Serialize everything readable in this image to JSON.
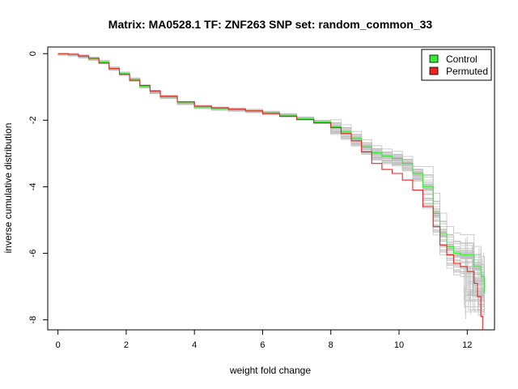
{
  "chart_data": {
    "type": "line",
    "title": "Matrix: MA0528.1 TF: ZNF263 SNP set: random_common_33",
    "xlabel": "weight fold change",
    "ylabel": "inverse cumulative distribution",
    "xlim": [
      -0.3,
      12.8
    ],
    "ylim": [
      -8.3,
      0.2
    ],
    "x_ticks": [
      0,
      2,
      4,
      6,
      8,
      10,
      12
    ],
    "y_ticks": [
      0,
      -2,
      -4,
      -6,
      -8
    ],
    "legend": {
      "position": "top-right",
      "entries": [
        "Control",
        "Permuted"
      ]
    },
    "grid": false,
    "colors": {
      "Control": "#33ee33",
      "Permuted": "#ee2222",
      "background": "#c0c0c0"
    },
    "series": [
      {
        "name": "Control",
        "x": [
          0,
          0.3,
          0.6,
          0.9,
          1.2,
          1.5,
          1.8,
          2.1,
          2.4,
          2.7,
          3.0,
          3.5,
          4.0,
          4.5,
          5.0,
          5.5,
          6.0,
          6.5,
          7.0,
          7.5,
          8.0,
          8.3,
          8.6,
          8.9,
          9.2,
          9.5,
          9.8,
          10.1,
          10.4,
          10.7,
          11.0,
          11.2,
          11.4,
          11.6,
          11.8,
          12.0,
          12.2,
          12.4,
          12.5
        ],
        "y": [
          0,
          -0.02,
          -0.08,
          -0.15,
          -0.25,
          -0.45,
          -0.6,
          -0.78,
          -0.98,
          -1.15,
          -1.3,
          -1.48,
          -1.6,
          -1.65,
          -1.68,
          -1.72,
          -1.78,
          -1.85,
          -1.95,
          -2.05,
          -2.2,
          -2.35,
          -2.55,
          -2.8,
          -2.98,
          -3.08,
          -3.15,
          -3.3,
          -3.6,
          -4.0,
          -4.8,
          -5.4,
          -5.8,
          -6.0,
          -6.05,
          -6.05,
          -6.4,
          -6.7,
          -7.2
        ]
      },
      {
        "name": "Permuted",
        "x": [
          0,
          0.3,
          0.6,
          0.9,
          1.2,
          1.5,
          1.8,
          2.1,
          2.4,
          2.7,
          3.0,
          3.5,
          4.0,
          4.5,
          5.0,
          5.5,
          6.0,
          6.5,
          7.0,
          7.5,
          8.0,
          8.3,
          8.6,
          8.9,
          9.2,
          9.5,
          9.8,
          10.1,
          10.4,
          10.7,
          11.0,
          11.2,
          11.4,
          11.6,
          11.8,
          12.0,
          12.2,
          12.3,
          12.4,
          12.45
        ],
        "y": [
          0,
          -0.02,
          -0.07,
          -0.14,
          -0.28,
          -0.45,
          -0.62,
          -0.8,
          -0.96,
          -1.12,
          -1.28,
          -1.45,
          -1.58,
          -1.63,
          -1.67,
          -1.72,
          -1.8,
          -1.88,
          -1.98,
          -2.08,
          -2.22,
          -2.4,
          -2.62,
          -2.95,
          -3.3,
          -3.48,
          -3.6,
          -3.8,
          -4.1,
          -4.6,
          -5.2,
          -5.75,
          -6.05,
          -6.3,
          -6.4,
          -6.55,
          -6.9,
          -7.3,
          -7.9,
          -8.3
        ]
      }
    ]
  }
}
